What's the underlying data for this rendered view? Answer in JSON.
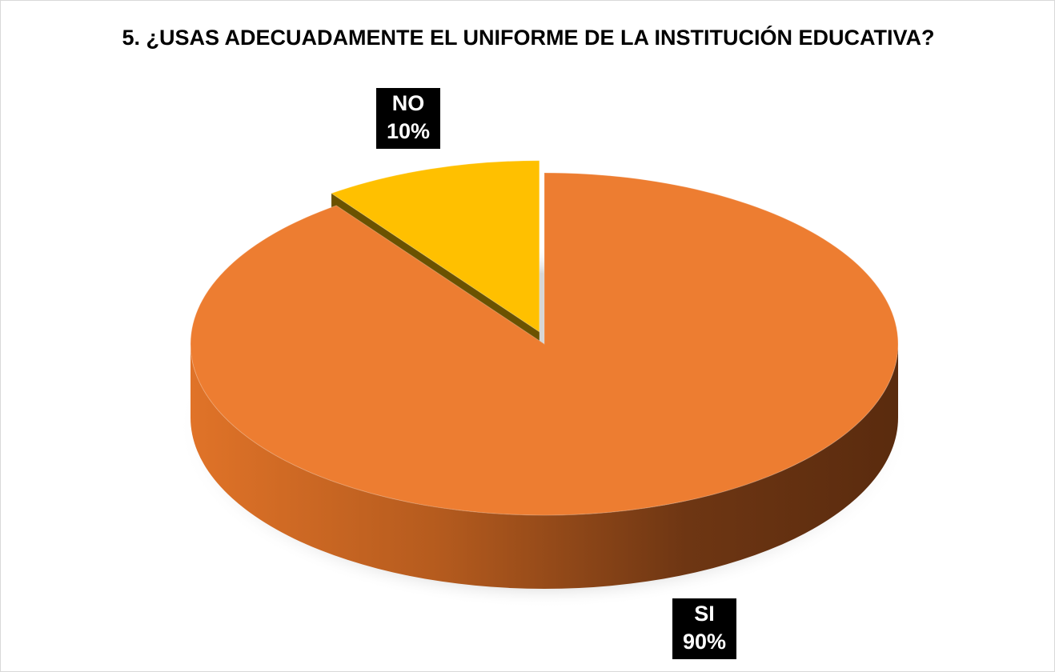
{
  "chart_data": {
    "type": "pie3d",
    "title": "5. ¿USAS ADECUADAMENTE EL UNIFORME DE LA INSTITUCIÓN EDUCATIVA?",
    "categories": [
      "SI",
      "NO"
    ],
    "values": [
      90,
      10
    ],
    "value_labels": [
      "90%",
      "10%"
    ],
    "colors": [
      "#ED7D31",
      "#FFC000"
    ],
    "side_colors": [
      "#5E2E10",
      "#6B5200"
    ],
    "exploded": [
      false,
      true
    ]
  }
}
